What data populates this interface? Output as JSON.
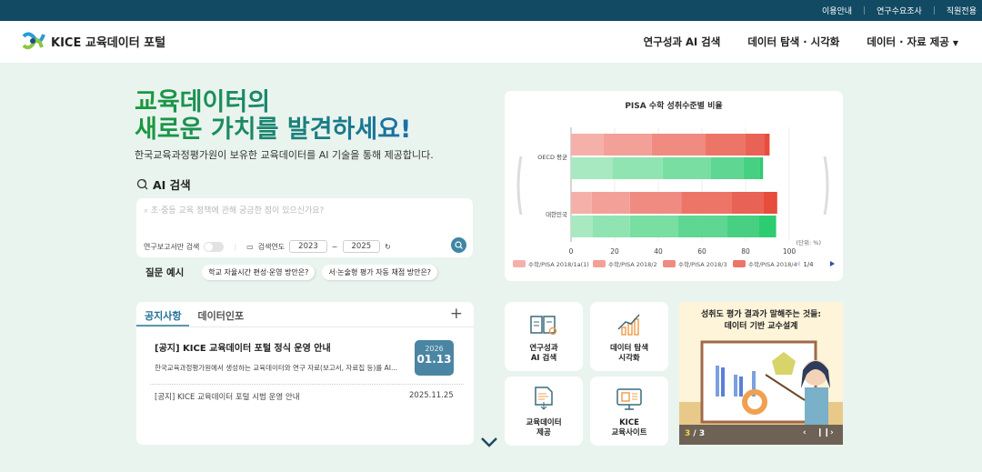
{
  "topbar": {
    "links": [
      "이용안내",
      "연구수요조사",
      "직원전용"
    ]
  },
  "header": {
    "logo_text": "KICE 교육데이터 포털",
    "nav": [
      "연구성과 AI 검색",
      "데이터 탐색 · 시각화",
      "데이터 · 자료 제공"
    ]
  },
  "hero": {
    "line1": "교육데이터의",
    "line2": "새로운 가치를 발견하세요!",
    "subtitle": "한국교육과정평가원이 보유한 교육데이터를 AI 기술을 통해 제공합니다."
  },
  "ai_search": {
    "title": "AI 검색",
    "placeholder": "초·중등 교육 정책에 관해 궁금한 점이 있으신가요?",
    "report_only_label": "연구보고서만 검색",
    "report_only": false,
    "year_label": "검색연도",
    "year_from": "2023",
    "year_to": "2025",
    "dash": "~"
  },
  "examples": {
    "label": "질문 예시",
    "chips": [
      "학교 자율시간 편성·운영 방안은?",
      "서·논술형 평가 자동 채점 방안은?"
    ]
  },
  "notice": {
    "tabs": [
      "공지사항",
      "데이터인포"
    ],
    "active_tab": 0,
    "plus": "+",
    "featured": {
      "title": "[공지] KICE 교육데이터 포털 정식 운영 안내",
      "desc": "한국교육과정평가원에서 생성하는 교육데이터와 연구 자료(보고서, 자료집 등)를 AI...",
      "year": "2026",
      "date": "01.13"
    },
    "items": [
      {
        "title": "[공지] KICE 교육데이터 포털 시범 운영 안내",
        "date": "2025.11.25"
      }
    ]
  },
  "chart_data": {
    "type": "bar",
    "orientation": "horizontal",
    "stacked": true,
    "title": "PISA 수학 성취수준별 비율",
    "unit_label": "(단위: %)",
    "categories": [
      "OECD 평균",
      "대한민국"
    ],
    "xlim": [
      0,
      100
    ],
    "xticks": [
      0,
      20,
      40,
      60,
      80,
      100
    ],
    "grid": true,
    "legend_position": "bottom",
    "legend_page": "1/4",
    "legend": [
      "수학/PISA 2018/1a(1)",
      "수학/PISA 2018/2",
      "수학/PISA 2018/3",
      "수학/PISA 2018/4"
    ],
    "bars": [
      {
        "category": "OECD 평균",
        "group": "red",
        "segments": [
          15,
          22,
          24.5,
          18.5,
          8.5,
          2.5
        ]
      },
      {
        "category": "OECD 평균",
        "group": "green",
        "segments": [
          19,
          23,
          22,
          15,
          7.5,
          1.5
        ]
      },
      {
        "category": "대한민국",
        "group": "red",
        "segments": [
          9.5,
          17.5,
          23.5,
          23,
          14.5,
          6.5
        ]
      },
      {
        "category": "대한민국",
        "group": "green",
        "segments": [
          10,
          17,
          22,
          22.5,
          14.5,
          8
        ]
      }
    ],
    "colors": {
      "red": [
        "#f5b0aa",
        "#f3a098",
        "#ef8b80",
        "#ec7568",
        "#e96256",
        "#e74c3c"
      ],
      "green": [
        "#a8e9c2",
        "#90e4b2",
        "#78dea2",
        "#5fd692",
        "#47d082",
        "#2ecc71"
      ]
    }
  },
  "tiles": [
    {
      "line1": "연구성과",
      "line2": "AI 검색",
      "icon": "book-search-icon"
    },
    {
      "line1": "데이터 탐색",
      "line2": "시각화",
      "icon": "chart-growth-icon"
    },
    {
      "line1": "교육데이터",
      "line2": "제공",
      "icon": "data-download-icon"
    },
    {
      "line1": "KICE",
      "line2": "교육사이트",
      "icon": "monitor-icon"
    }
  ],
  "banner": {
    "line1": "성취도 평가 결과가 말해주는 것들:",
    "line2": "데이터 기반 교수설계",
    "current": "3",
    "total": "/ 3"
  }
}
